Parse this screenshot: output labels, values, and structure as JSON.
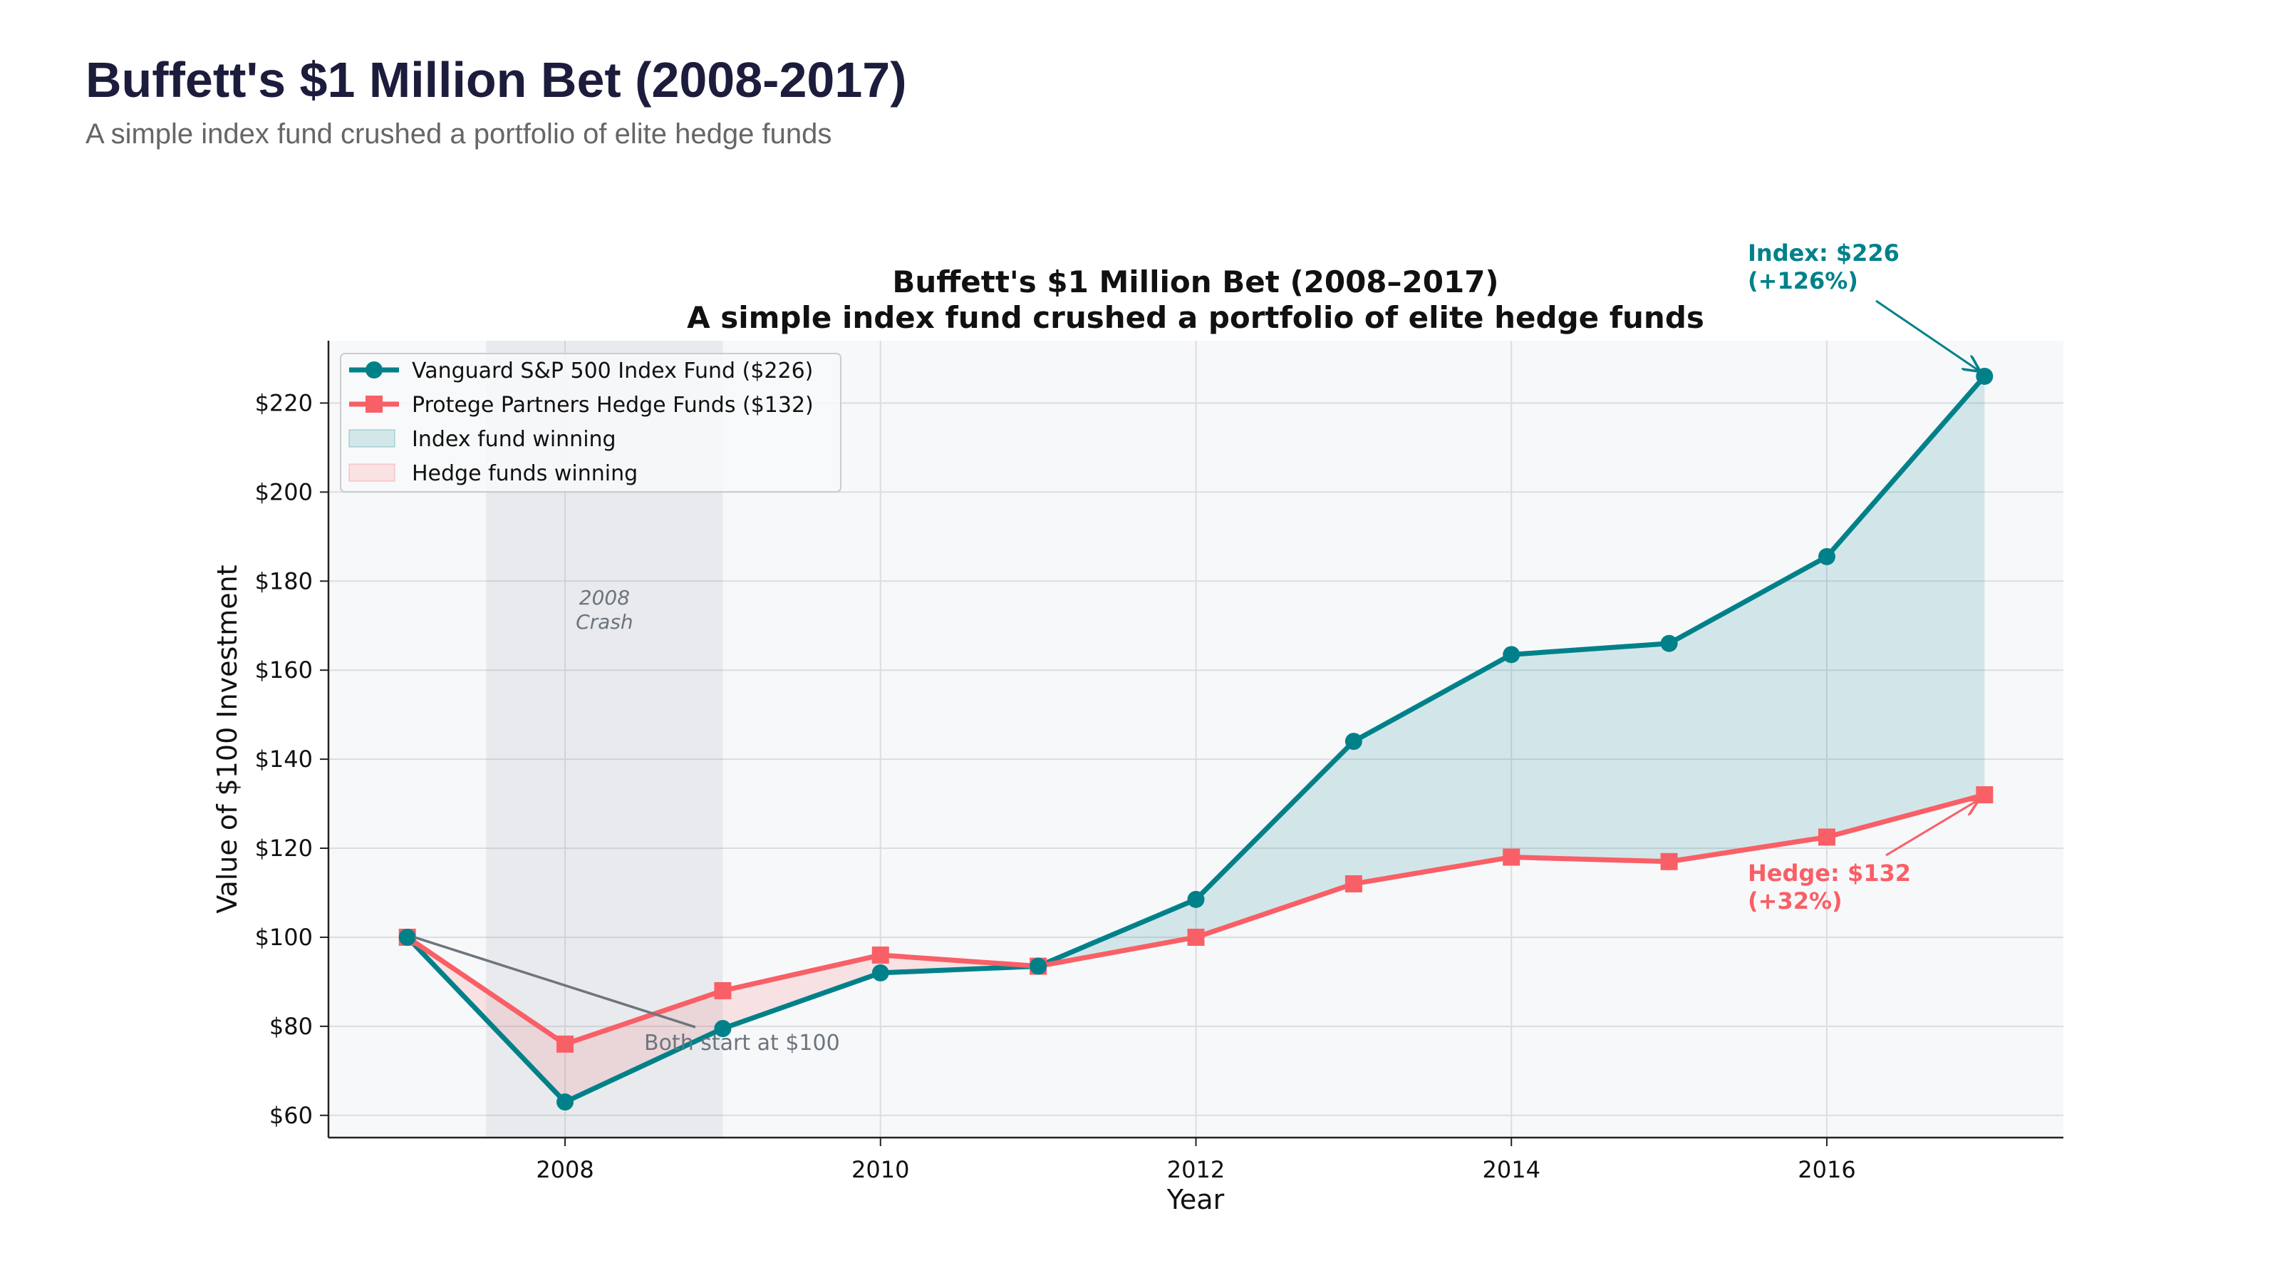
{
  "page": {
    "title": "Buffett's $1 Million Bet (2008-2017)",
    "subtitle": "A simple index fund crushed a portfolio of elite hedge funds"
  },
  "chart_data": {
    "type": "line",
    "title": "Buffett's $1 Million Bet (2008–2017)",
    "subtitle": "A simple index fund crushed a portfolio of elite hedge funds",
    "xlabel": "Year",
    "ylabel": "Value of $100 Investment",
    "x": [
      2007,
      2008,
      2009,
      2010,
      2011,
      2012,
      2013,
      2014,
      2015,
      2016,
      2017
    ],
    "xlim": [
      2006.5,
      2017.5
    ],
    "ylim": [
      55,
      234
    ],
    "xticks": [
      2008,
      2010,
      2012,
      2014,
      2016
    ],
    "yticks": [
      60,
      80,
      100,
      120,
      140,
      160,
      180,
      200,
      220
    ],
    "ytick_labels": [
      "$60",
      "$80",
      "$100",
      "$120",
      "$140",
      "$160",
      "$180",
      "$200",
      "$220"
    ],
    "grid": true,
    "legend_placement": "top-left",
    "series": [
      {
        "name": "Vanguard S&P 500 Index Fund ($226)",
        "color": "#00818a",
        "marker": "circle",
        "values": [
          100,
          63,
          79.5,
          92,
          93.5,
          108.5,
          144,
          163.5,
          166,
          185.5,
          226
        ]
      },
      {
        "name": "Protege Partners Hedge Funds ($132)",
        "color": "#f95f66",
        "marker": "square",
        "values": [
          100,
          76,
          88,
          96,
          93.5,
          100,
          112,
          118,
          117,
          122.5,
          132
        ]
      }
    ],
    "fills": [
      {
        "name": "Index fund winning",
        "color": "#00818a"
      },
      {
        "name": "Hedge funds winning",
        "color": "#f95f66"
      }
    ],
    "shaded_region": {
      "x": [
        2007.5,
        2009
      ],
      "label_line1": "2008",
      "label_line2": "Crash"
    },
    "annotations": {
      "start": {
        "text": "Both start at $100",
        "x": 2007,
        "y": 100
      },
      "index_end": {
        "line1": "Index: $226",
        "line2": "(+126%)",
        "x": 2017,
        "y": 226
      },
      "hedge_end": {
        "line1": "Hedge: $132",
        "line2": "(+32%)",
        "x": 2017,
        "y": 132
      }
    }
  }
}
